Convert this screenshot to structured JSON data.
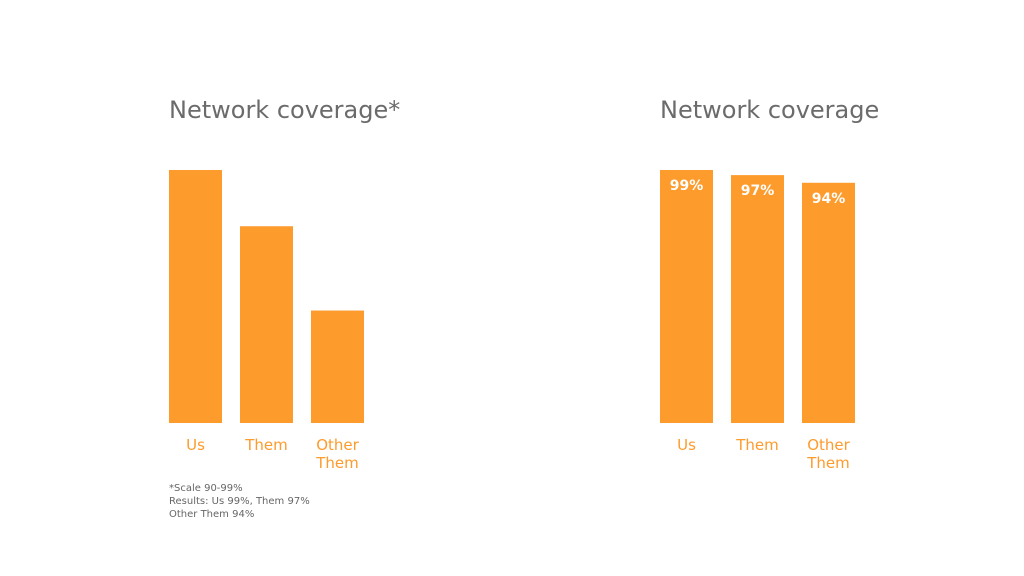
{
  "colors": {
    "bar": "#fd9b2c",
    "category_label": "#fd9b2c",
    "value_label": "#ffffff",
    "title": "#6b6b6b"
  },
  "chart_data": [
    {
      "type": "bar",
      "title": "Network coverage*",
      "categories": [
        [
          "Us"
        ],
        [
          "Them"
        ],
        [
          "Other",
          "Them"
        ]
      ],
      "values": [
        99,
        97,
        94
      ],
      "ylim": [
        90,
        99
      ],
      "value_labels_shown": false,
      "grid": false,
      "footnote": [
        "*Scale 90-99%",
        "Results: Us 99%, Them 97%",
        "Other Them 94%"
      ]
    },
    {
      "type": "bar",
      "title": "Network coverage",
      "categories": [
        [
          "Us"
        ],
        [
          "Them"
        ],
        [
          "Other",
          "Them"
        ]
      ],
      "values": [
        99,
        97,
        94
      ],
      "value_labels": [
        "99%",
        "97%",
        "94%"
      ],
      "value_labels_shown": true,
      "ylim": [
        0,
        99
      ],
      "grid": false
    }
  ]
}
